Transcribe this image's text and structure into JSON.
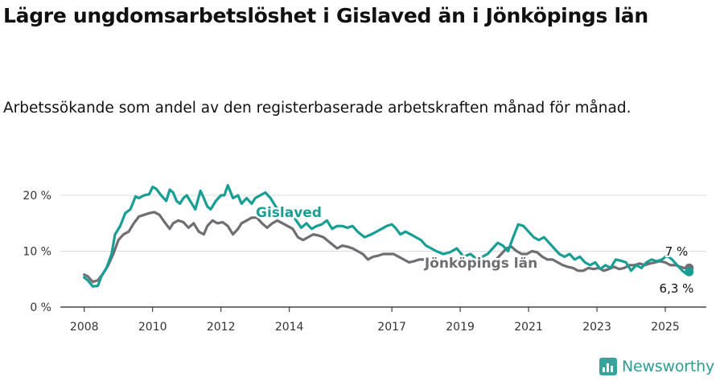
{
  "header": {
    "title": "Lägre ungdomsarbetslöshet i Gislaved än i Jönköpings län",
    "subtitle": "Arbetssökande som andel av den registerbaserade arbetskraften månad för månad."
  },
  "brand": {
    "name": "Newsworthy",
    "icon": "newsworthy-logo-icon",
    "color": "#37a39a"
  },
  "chart_data": {
    "type": "line",
    "title": "Lägre ungdomsarbetslöshet i Gislaved än i Jönköpings län",
    "subtitle": "Arbetssökande som andel av den registerbaserade arbetskraften månad för månad.",
    "xlabel": "",
    "ylabel": "",
    "xlim": [
      2007.3,
      2026.2
    ],
    "ylim": [
      0,
      20
    ],
    "y_ticks": [
      0,
      10,
      20
    ],
    "y_tick_labels": [
      "0 %",
      "10 %",
      "20 %"
    ],
    "x_ticks": [
      2008,
      2010,
      2012,
      2014,
      2017,
      2019,
      2021,
      2023,
      2025
    ],
    "x_tick_labels": [
      "2008",
      "2010",
      "2012",
      "2014",
      "2017",
      "2019",
      "2021",
      "2023",
      "2025"
    ],
    "grid": true,
    "legend": "direct labels on lines",
    "series": [
      {
        "name": "Gislaved",
        "color": "#199e94",
        "label_color": "#199e94",
        "end_label": "6,3 %",
        "x": [
          2008.0,
          2008.1,
          2008.25,
          2008.4,
          2008.5,
          2008.65,
          2008.8,
          2008.9,
          2009.05,
          2009.2,
          2009.35,
          2009.5,
          2009.6,
          2009.75,
          2009.9,
          2010.0,
          2010.1,
          2010.25,
          2010.4,
          2010.5,
          2010.6,
          2010.7,
          2010.8,
          2010.9,
          2011.0,
          2011.1,
          2011.25,
          2011.4,
          2011.5,
          2011.6,
          2011.7,
          2011.85,
          2012.0,
          2012.1,
          2012.2,
          2012.35,
          2012.5,
          2012.6,
          2012.75,
          2012.9,
          2013.0,
          2013.15,
          2013.3,
          2013.45,
          2013.6,
          2013.75,
          2013.9,
          2014.0,
          2014.1,
          2014.2,
          2014.35,
          2014.5,
          2014.65,
          2014.8,
          2014.95,
          2015.1,
          2015.25,
          2015.4,
          2015.55,
          2015.7,
          2015.85,
          2016.0,
          2016.2,
          2016.4,
          2016.55,
          2016.7,
          2016.85,
          2017.0,
          2017.1,
          2017.25,
          2017.4,
          2017.55,
          2017.7,
          2017.85,
          2018.0,
          2018.15,
          2018.3,
          2018.5,
          2018.7,
          2018.9,
          2019.1,
          2019.3,
          2019.5,
          2019.65,
          2019.8,
          2019.95,
          2020.1,
          2020.25,
          2020.4,
          2020.55,
          2020.7,
          2020.85,
          2021.0,
          2021.15,
          2021.3,
          2021.45,
          2021.6,
          2021.75,
          2021.9,
          2022.05,
          2022.2,
          2022.35,
          2022.5,
          2022.65,
          2022.8,
          2022.95,
          2023.1,
          2023.25,
          2023.4,
          2023.55,
          2023.7,
          2023.85,
          2024.0,
          2024.15,
          2024.3,
          2024.45,
          2024.6,
          2024.75,
          2024.9,
          2025.05,
          2025.2,
          2025.35,
          2025.5,
          2025.6,
          2025.7
        ],
        "values": [
          5.3,
          4.8,
          3.7,
          3.8,
          5.5,
          7.0,
          9.5,
          13.0,
          14.5,
          16.8,
          17.5,
          19.8,
          19.5,
          20.0,
          20.2,
          21.5,
          21.2,
          20.0,
          19.0,
          21.0,
          20.5,
          19.0,
          18.5,
          19.5,
          20.0,
          19.0,
          17.5,
          20.8,
          19.5,
          18.0,
          17.5,
          19.0,
          20.0,
          20.0,
          21.8,
          19.5,
          20.0,
          18.5,
          19.5,
          18.5,
          19.5,
          20.0,
          20.5,
          19.5,
          18.0,
          17.0,
          16.5,
          17.0,
          16.5,
          15.5,
          14.2,
          15.0,
          14.0,
          14.5,
          14.8,
          15.5,
          14.0,
          14.5,
          14.5,
          14.2,
          14.5,
          13.5,
          12.5,
          13.0,
          13.5,
          14.0,
          14.5,
          14.8,
          14.2,
          13.0,
          13.5,
          13.0,
          12.5,
          12.0,
          11.0,
          10.5,
          10.0,
          9.5,
          9.8,
          10.5,
          9.0,
          9.5,
          8.5,
          9.0,
          9.5,
          10.5,
          11.5,
          11.0,
          10.0,
          12.5,
          14.8,
          14.5,
          13.5,
          12.5,
          12.0,
          12.5,
          11.5,
          10.5,
          9.5,
          9.0,
          9.5,
          8.5,
          9.0,
          8.0,
          7.5,
          8.0,
          6.8,
          7.5,
          7.0,
          8.5,
          8.3,
          8.0,
          6.5,
          7.5,
          7.0,
          8.0,
          8.5,
          8.2,
          8.5,
          9.2,
          8.5,
          7.5,
          6.5,
          6.0,
          6.3
        ]
      },
      {
        "name": "Jönköpings län",
        "color": "#6e6e73",
        "label_color": "#6e6e73",
        "end_label": "7 %",
        "x": [
          2008.0,
          2008.1,
          2008.25,
          2008.4,
          2008.55,
          2008.7,
          2008.85,
          2009.0,
          2009.15,
          2009.3,
          2009.45,
          2009.6,
          2009.75,
          2009.9,
          2010.05,
          2010.2,
          2010.35,
          2010.5,
          2010.6,
          2010.75,
          2010.9,
          2011.05,
          2011.2,
          2011.35,
          2011.5,
          2011.6,
          2011.75,
          2011.9,
          2012.05,
          2012.2,
          2012.35,
          2012.5,
          2012.6,
          2012.75,
          2012.9,
          2013.05,
          2013.2,
          2013.35,
          2013.5,
          2013.65,
          2013.8,
          2013.95,
          2014.1,
          2014.25,
          2014.4,
          2014.55,
          2014.7,
          2014.85,
          2015.0,
          2015.2,
          2015.4,
          2015.55,
          2015.7,
          2015.85,
          2016.0,
          2016.15,
          2016.3,
          2016.45,
          2016.6,
          2016.75,
          2016.9,
          2017.05,
          2017.2,
          2017.35,
          2017.5,
          2017.65,
          2017.8,
          2017.95,
          2018.1,
          2018.3,
          2018.5,
          2018.7,
          2018.9,
          2019.1,
          2019.3,
          2019.5,
          2019.7,
          2019.9,
          2020.05,
          2020.2,
          2020.35,
          2020.5,
          2020.65,
          2020.8,
          2020.95,
          2021.1,
          2021.25,
          2021.4,
          2021.55,
          2021.7,
          2021.85,
          2022.0,
          2022.15,
          2022.3,
          2022.45,
          2022.6,
          2022.75,
          2022.9,
          2023.05,
          2023.2,
          2023.35,
          2023.5,
          2023.65,
          2023.8,
          2023.95,
          2024.1,
          2024.25,
          2024.4,
          2024.55,
          2024.7,
          2024.85,
          2025.0,
          2025.15,
          2025.3,
          2025.45,
          2025.55,
          2025.7
        ],
        "values": [
          5.8,
          5.5,
          4.5,
          4.8,
          6.0,
          7.5,
          9.5,
          12.0,
          13.0,
          13.5,
          15.0,
          16.2,
          16.5,
          16.8,
          17.0,
          16.5,
          15.2,
          14.0,
          15.0,
          15.5,
          15.2,
          14.2,
          15.0,
          13.5,
          13.0,
          14.5,
          15.5,
          15.0,
          15.2,
          14.5,
          13.0,
          14.0,
          15.0,
          15.5,
          16.0,
          16.0,
          15.0,
          14.2,
          15.0,
          15.5,
          15.0,
          14.5,
          14.0,
          12.5,
          12.0,
          12.5,
          13.0,
          12.8,
          12.5,
          11.5,
          10.5,
          11.0,
          10.8,
          10.5,
          10.0,
          9.5,
          8.5,
          9.0,
          9.2,
          9.5,
          9.5,
          9.5,
          9.0,
          8.5,
          8.0,
          8.2,
          8.5,
          8.5,
          8.0,
          7.5,
          7.0,
          7.5,
          7.5,
          7.2,
          7.0,
          7.2,
          7.5,
          8.0,
          8.5,
          9.5,
          10.5,
          10.8,
          10.0,
          9.5,
          9.5,
          10.0,
          9.8,
          9.0,
          8.5,
          8.5,
          8.0,
          7.5,
          7.2,
          7.0,
          6.5,
          6.5,
          7.0,
          6.8,
          7.0,
          6.5,
          6.8,
          7.2,
          6.8,
          7.0,
          7.5,
          7.5,
          7.8,
          7.5,
          7.8,
          8.0,
          8.2,
          8.0,
          7.5,
          7.5,
          7.2,
          7.0,
          7.0
        ]
      }
    ]
  }
}
